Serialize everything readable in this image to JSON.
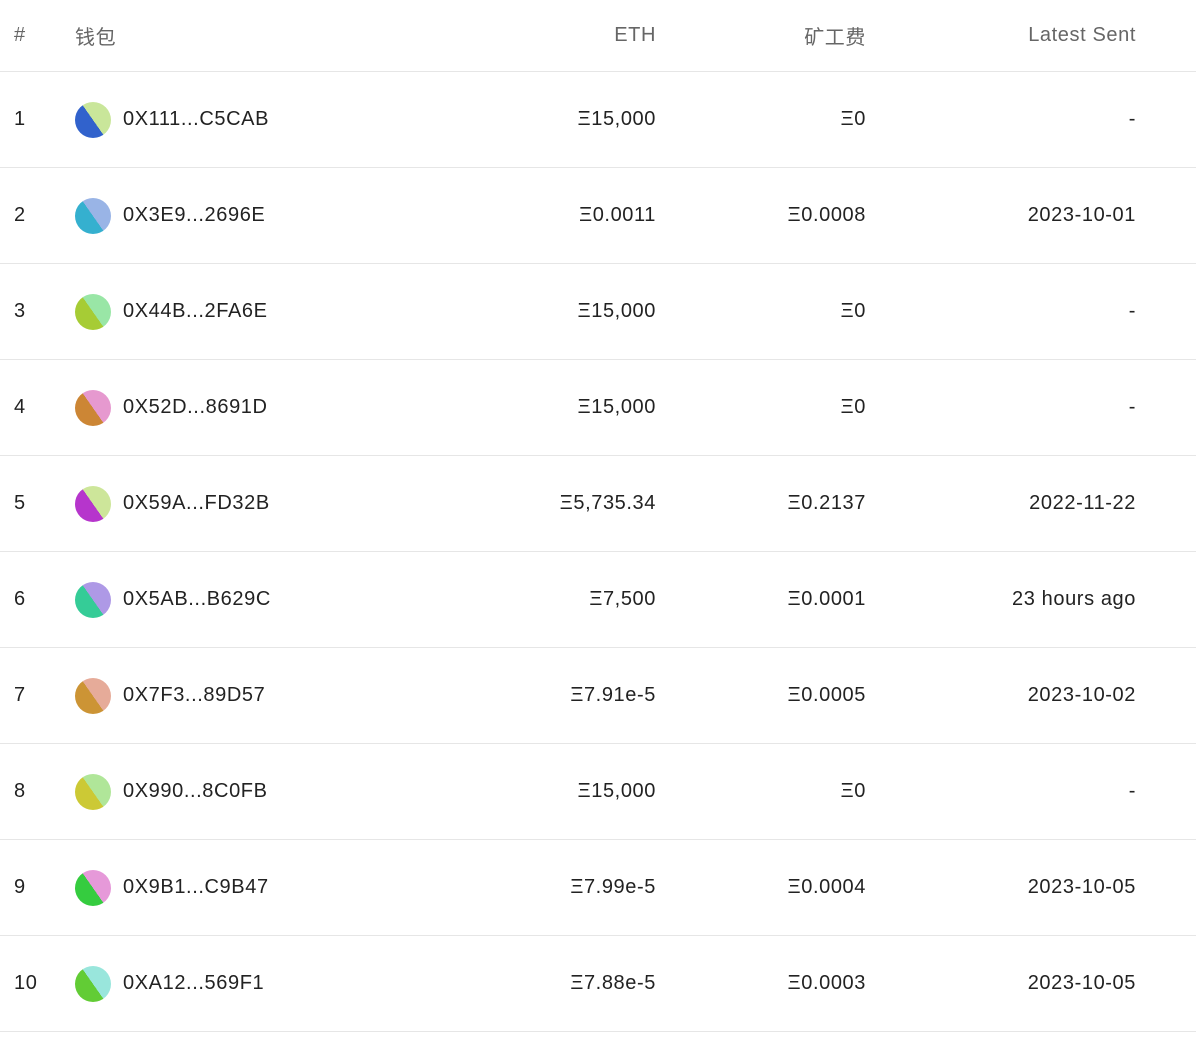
{
  "headers": {
    "index": "#",
    "wallet": "钱包",
    "eth": "ETH",
    "fee": "矿工费",
    "latest": "Latest Sent"
  },
  "rows": [
    {
      "index": "1",
      "address": "0X111...C5CAB",
      "eth": "Ξ15,000",
      "fee": "Ξ0",
      "latest": "-",
      "colors": [
        "#3162cc",
        "#c9e69a"
      ]
    },
    {
      "index": "2",
      "address": "0X3E9...2696E",
      "eth": "Ξ0.0011",
      "fee": "Ξ0.0008",
      "latest": "2023-10-01",
      "colors": [
        "#35b0cf",
        "#99b4e6"
      ]
    },
    {
      "index": "3",
      "address": "0X44B...2FA6E",
      "eth": "Ξ15,000",
      "fee": "Ξ0",
      "latest": "-",
      "colors": [
        "#a6cc35",
        "#99e6a6"
      ]
    },
    {
      "index": "4",
      "address": "0X52D...8691D",
      "eth": "Ξ15,000",
      "fee": "Ξ0",
      "latest": "-",
      "colors": [
        "#cc8635",
        "#e699cf"
      ]
    },
    {
      "index": "5",
      "address": "0X59A...FD32B",
      "eth": "Ξ5,735.34",
      "fee": "Ξ0.2137",
      "latest": "2022-11-22",
      "colors": [
        "#b635cc",
        "#cde69a"
      ]
    },
    {
      "index": "6",
      "address": "0X5AB...B629C",
      "eth": "Ξ7,500",
      "fee": "Ξ0.0001",
      "latest": "23 hours ago",
      "colors": [
        "#35cc97",
        "#ae99e6"
      ]
    },
    {
      "index": "7",
      "address": "0X7F3...89D57",
      "eth": "Ξ7.91e-5",
      "fee": "Ξ0.0005",
      "latest": "2023-10-02",
      "colors": [
        "#cc9435",
        "#e6ab99"
      ]
    },
    {
      "index": "8",
      "address": "0X990...8C0FB",
      "eth": "Ξ15,000",
      "fee": "Ξ0",
      "latest": "-",
      "colors": [
        "#ccc935",
        "#b0e699"
      ]
    },
    {
      "index": "9",
      "address": "0X9B1...C9B47",
      "eth": "Ξ7.99e-5",
      "fee": "Ξ0.0004",
      "latest": "2023-10-05",
      "colors": [
        "#35cc3f",
        "#e699d9"
      ]
    },
    {
      "index": "10",
      "address": "0XA12...569F1",
      "eth": "Ξ7.88e-5",
      "fee": "Ξ0.0003",
      "latest": "2023-10-05",
      "colors": [
        "#62cc35",
        "#99e6dc"
      ]
    }
  ]
}
